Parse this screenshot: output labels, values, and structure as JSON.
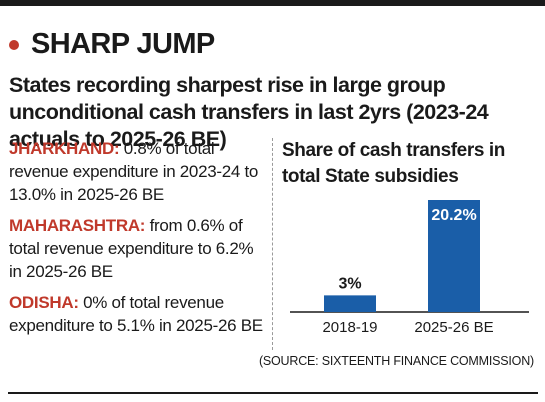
{
  "headline": "SHARP JUMP",
  "subhead": "States recording sharpest rise in large group unconditional cash transfers in last 2yrs (2023-24 actuals to 2025-26 BE)",
  "notes": [
    {
      "state": "JHARKHAND:",
      "text": " 0.8% of total revenue expenditure in 2023-24 to 13.0% in 2025-26 BE"
    },
    {
      "state": "MAHARASHTRA:",
      "text": " from 0.6% of total revenue expenditure to 6.2% in 2025-26 BE"
    },
    {
      "state": "ODISHA:",
      "text": " 0% of total revenue expenditure to 5.1% in 2025-26 BE"
    }
  ],
  "source": "(SOURCE: SIXTEENTH FINANCE COMMISSION)",
  "colors": {
    "bar": "#1a5ea8",
    "accent": "#c0392b",
    "bullet": "#c0392b"
  },
  "chart_data": {
    "type": "bar",
    "title": "Share of cash transfers in total State subsidies",
    "categories": [
      "2018-19",
      "2025-26 BE"
    ],
    "values": [
      3,
      20.2
    ],
    "data_labels": [
      "3%",
      "20.2%"
    ],
    "xlabel": "",
    "ylabel": "",
    "ylim": [
      0,
      20.2
    ],
    "grid": false,
    "legend": "none"
  }
}
